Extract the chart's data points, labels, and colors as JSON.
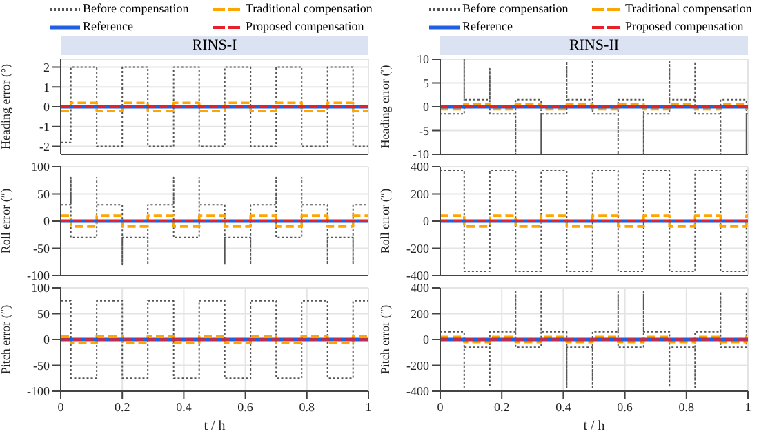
{
  "chart_data": [
    {
      "type": "line",
      "title": "RINS-I",
      "ylabel": "Heading error (°)",
      "xlim": [
        0,
        1
      ],
      "xticks": [
        0,
        0.2,
        0.4,
        0.6,
        0.8,
        1
      ],
      "ylim": [
        -2.4,
        2.4
      ],
      "yticks": [
        -2,
        -1,
        0,
        1,
        2
      ],
      "grid": true,
      "legend": "top",
      "marker": "none",
      "tick_labels": "y",
      "series": [
        {
          "name": "Before compensation",
          "color": "#555555",
          "line_style": "dotted",
          "x": [
            0,
            0.033,
            0.033,
            0.117,
            0.117,
            0.2,
            0.2,
            0.283,
            0.283,
            0.367,
            0.367,
            0.45,
            0.45,
            0.533,
            0.533,
            0.617,
            0.617,
            0.7,
            0.7,
            0.783,
            0.783,
            0.867,
            0.867,
            0.95,
            0.95,
            1
          ],
          "values": [
            -1.8,
            -1.8,
            2,
            2,
            -2,
            -2,
            2,
            2,
            -2,
            -2,
            2,
            2,
            -2,
            -2,
            2,
            2,
            -2,
            -2,
            2,
            2,
            -2,
            -2,
            2,
            2,
            -2,
            -2
          ]
        },
        {
          "name": "Traditional compensation",
          "color": "#ffa500",
          "line_style": "dashed",
          "x": [
            0,
            0.033,
            0.033,
            0.117,
            0.117,
            0.2,
            0.2,
            0.283,
            0.283,
            0.367,
            0.367,
            0.45,
            0.45,
            0.533,
            0.533,
            0.617,
            0.617,
            0.7,
            0.7,
            0.783,
            0.783,
            0.867,
            0.867,
            0.95,
            0.95,
            1
          ],
          "values": [
            -0.2,
            -0.2,
            0.2,
            0.2,
            -0.2,
            -0.2,
            0.2,
            0.2,
            -0.2,
            -0.2,
            0.2,
            0.2,
            -0.2,
            -0.2,
            0.2,
            0.2,
            -0.2,
            -0.2,
            0.2,
            0.2,
            -0.2,
            -0.2,
            0.2,
            0.2,
            -0.2,
            -0.2
          ]
        },
        {
          "name": "Reference",
          "color": "#1f5fe0",
          "line_style": "solid",
          "x": [
            0,
            1
          ],
          "values": [
            0,
            0
          ]
        },
        {
          "name": "Proposed compensation",
          "color": "#e8202a",
          "line_style": "dashed",
          "x": [
            0,
            1
          ],
          "values": [
            0,
            0
          ]
        }
      ]
    },
    {
      "type": "line",
      "title": "RINS-II",
      "ylabel": "Heading error (′)",
      "xlim": [
        0,
        1
      ],
      "xticks": [
        0,
        0.2,
        0.4,
        0.6,
        0.8,
        1
      ],
      "ylim": [
        -10,
        10
      ],
      "yticks": [
        -10,
        -5,
        0,
        5,
        10
      ],
      "grid": true,
      "legend": "top",
      "marker": "none",
      "tick_labels": "y",
      "series": [
        {
          "name": "Before compensation",
          "color": "#555555",
          "line_style": "dotted",
          "x": [
            0,
            0.078,
            0.078,
            0.078,
            0.161,
            0.161,
            0.161,
            0.245,
            0.245,
            0.245,
            0.328,
            0.328,
            0.328,
            0.411,
            0.411,
            0.411,
            0.495,
            0.495,
            0.495,
            0.578,
            0.578,
            0.578,
            0.661,
            0.661,
            0.661,
            0.745,
            0.745,
            0.745,
            0.828,
            0.828,
            0.828,
            0.911,
            0.911,
            0.911,
            0.995,
            0.995,
            0.995,
            1
          ],
          "values": [
            -1.5,
            -1.5,
            10,
            1.5,
            1.5,
            8,
            -1.5,
            -1.5,
            -10,
            1.5,
            1.5,
            -10,
            -1.5,
            -1.5,
            9.5,
            1.5,
            1.5,
            9.5,
            -1.5,
            -1.5,
            -10,
            1.5,
            1.5,
            -10,
            -1.5,
            -1.5,
            9.5,
            1.5,
            1.5,
            9.5,
            -1.5,
            -1.5,
            -10,
            1.5,
            1.5,
            -10,
            -1.5,
            -1.5
          ]
        },
        {
          "name": "Traditional compensation",
          "color": "#ffa500",
          "line_style": "dashed",
          "x": [
            0,
            0.078,
            0.078,
            0.161,
            0.161,
            0.245,
            0.245,
            0.328,
            0.328,
            0.411,
            0.411,
            0.495,
            0.495,
            0.578,
            0.578,
            0.661,
            0.661,
            0.745,
            0.745,
            0.828,
            0.828,
            0.911,
            0.911,
            0.995,
            0.995,
            1
          ],
          "values": [
            -0.5,
            -0.5,
            0.5,
            0.5,
            -0.5,
            -0.5,
            0.5,
            0.5,
            -0.5,
            -0.5,
            0.5,
            0.5,
            -0.5,
            -0.5,
            0.5,
            0.5,
            -0.5,
            -0.5,
            0.5,
            0.5,
            -0.5,
            -0.5,
            0.5,
            0.5,
            -0.5,
            -0.5
          ]
        },
        {
          "name": "Reference",
          "color": "#1f5fe0",
          "line_style": "solid",
          "x": [
            0,
            1
          ],
          "values": [
            0,
            0
          ]
        },
        {
          "name": "Proposed compensation",
          "color": "#e8202a",
          "line_style": "dashed",
          "x": [
            0,
            1
          ],
          "values": [
            0,
            0
          ]
        }
      ]
    },
    {
      "type": "line",
      "ylabel": "Roll error (″)",
      "xlim": [
        0,
        1
      ],
      "xticks": [
        0,
        0.2,
        0.4,
        0.6,
        0.8,
        1
      ],
      "ylim": [
        -100,
        100
      ],
      "yticks": [
        -100,
        -50,
        0,
        50,
        100
      ],
      "grid": true,
      "marker": "none",
      "tick_labels": "y",
      "series": [
        {
          "color": "#555555",
          "line_style": "dotted",
          "x": [
            0,
            0.033,
            0.033,
            0.033,
            0.117,
            0.117,
            0.117,
            0.2,
            0.2,
            0.2,
            0.283,
            0.283,
            0.283,
            0.367,
            0.367,
            0.367,
            0.45,
            0.45,
            0.45,
            0.533,
            0.533,
            0.533,
            0.617,
            0.617,
            0.617,
            0.7,
            0.7,
            0.7,
            0.783,
            0.783,
            0.783,
            0.867,
            0.867,
            0.867,
            0.95,
            0.95,
            0.95,
            1
          ],
          "values": [
            30,
            30,
            80,
            -30,
            -30,
            80,
            30,
            30,
            -80,
            -30,
            -30,
            -80,
            30,
            30,
            80,
            -30,
            -30,
            80,
            30,
            30,
            -80,
            -30,
            -30,
            -80,
            30,
            30,
            80,
            -30,
            -30,
            80,
            30,
            30,
            -80,
            -30,
            -30,
            -80,
            30,
            30
          ]
        },
        {
          "color": "#ffa500",
          "line_style": "dashed",
          "x": [
            0,
            0.033,
            0.033,
            0.117,
            0.117,
            0.2,
            0.2,
            0.283,
            0.283,
            0.367,
            0.367,
            0.45,
            0.45,
            0.533,
            0.533,
            0.617,
            0.617,
            0.7,
            0.7,
            0.783,
            0.783,
            0.867,
            0.867,
            0.95,
            0.95,
            1
          ],
          "values": [
            10,
            10,
            -10,
            -10,
            10,
            10,
            -10,
            -10,
            10,
            10,
            -10,
            -10,
            10,
            10,
            -10,
            -10,
            10,
            10,
            -10,
            -10,
            10,
            10,
            -10,
            -10,
            10,
            10
          ]
        },
        {
          "color": "#1f5fe0",
          "line_style": "solid",
          "x": [
            0,
            1
          ],
          "values": [
            0,
            0
          ]
        },
        {
          "color": "#e8202a",
          "line_style": "dashed",
          "x": [
            0,
            1
          ],
          "values": [
            0,
            0
          ]
        }
      ]
    },
    {
      "type": "line",
      "ylabel": "Roll error (″)",
      "xlim": [
        0,
        1
      ],
      "xticks": [
        0,
        0.2,
        0.4,
        0.6,
        0.8,
        1
      ],
      "ylim": [
        -400,
        400
      ],
      "yticks": [
        -400,
        -200,
        0,
        200,
        400
      ],
      "grid": true,
      "marker": "none",
      "tick_labels": "y",
      "series": [
        {
          "color": "#555555",
          "line_style": "dotted",
          "x": [
            0,
            0.078,
            0.078,
            0.161,
            0.161,
            0.245,
            0.245,
            0.328,
            0.328,
            0.411,
            0.411,
            0.495,
            0.495,
            0.578,
            0.578,
            0.661,
            0.661,
            0.745,
            0.745,
            0.828,
            0.828,
            0.911,
            0.911,
            0.995,
            0.995,
            1
          ],
          "values": [
            370,
            370,
            -370,
            -370,
            370,
            370,
            -370,
            -370,
            370,
            370,
            -370,
            -370,
            370,
            370,
            -370,
            -370,
            370,
            370,
            -370,
            -370,
            370,
            370,
            -370,
            -370,
            370,
            370
          ]
        },
        {
          "color": "#ffa500",
          "line_style": "dashed",
          "x": [
            0,
            0.078,
            0.078,
            0.161,
            0.161,
            0.245,
            0.245,
            0.328,
            0.328,
            0.411,
            0.411,
            0.495,
            0.495,
            0.578,
            0.578,
            0.661,
            0.661,
            0.745,
            0.745,
            0.828,
            0.828,
            0.911,
            0.911,
            0.995,
            0.995,
            1
          ],
          "values": [
            40,
            40,
            -40,
            -40,
            40,
            40,
            -40,
            -40,
            40,
            40,
            -40,
            -40,
            40,
            40,
            -40,
            -40,
            40,
            40,
            -40,
            -40,
            40,
            40,
            -40,
            -40,
            40,
            40
          ]
        },
        {
          "color": "#1f5fe0",
          "line_style": "solid",
          "x": [
            0,
            1
          ],
          "values": [
            0,
            0
          ]
        },
        {
          "color": "#e8202a",
          "line_style": "dashed",
          "x": [
            0,
            1
          ],
          "values": [
            0,
            0
          ]
        }
      ]
    },
    {
      "type": "line",
      "ylabel": "Pitch error (″)",
      "xlabel": "t / h",
      "xlim": [
        0,
        1
      ],
      "xticks": [
        0,
        0.2,
        0.4,
        0.6,
        0.8,
        1
      ],
      "ylim": [
        -100,
        100
      ],
      "yticks": [
        -100,
        -50,
        0,
        50,
        100
      ],
      "grid": true,
      "marker": "none",
      "series": [
        {
          "color": "#555555",
          "line_style": "dotted",
          "x": [
            0,
            0.033,
            0.033,
            0.117,
            0.117,
            0.2,
            0.2,
            0.283,
            0.283,
            0.367,
            0.367,
            0.45,
            0.45,
            0.533,
            0.533,
            0.617,
            0.617,
            0.7,
            0.7,
            0.783,
            0.783,
            0.867,
            0.867,
            0.95,
            0.95,
            1
          ],
          "values": [
            75,
            75,
            -75,
            -75,
            75,
            75,
            -75,
            -75,
            75,
            75,
            -75,
            -75,
            75,
            75,
            -75,
            -75,
            75,
            75,
            -75,
            -75,
            75,
            75,
            -75,
            -75,
            75,
            75
          ]
        },
        {
          "color": "#ffa500",
          "line_style": "dashed",
          "x": [
            0,
            0.033,
            0.033,
            0.117,
            0.117,
            0.2,
            0.2,
            0.283,
            0.283,
            0.367,
            0.367,
            0.45,
            0.45,
            0.533,
            0.533,
            0.617,
            0.617,
            0.7,
            0.7,
            0.783,
            0.783,
            0.867,
            0.867,
            0.95,
            0.95,
            1
          ],
          "values": [
            7,
            7,
            -7,
            -7,
            7,
            7,
            -7,
            -7,
            7,
            7,
            -7,
            -7,
            7,
            7,
            -7,
            -7,
            7,
            7,
            -7,
            -7,
            7,
            7,
            -7,
            -7,
            7,
            7
          ]
        },
        {
          "color": "#1f5fe0",
          "line_style": "solid",
          "x": [
            0,
            1
          ],
          "values": [
            0,
            0
          ]
        },
        {
          "color": "#e8202a",
          "line_style": "dashed",
          "x": [
            0,
            1
          ],
          "values": [
            0,
            0
          ]
        }
      ]
    },
    {
      "type": "line",
      "ylabel": "Pitch error (″)",
      "xlabel": "t / h",
      "xlim": [
        0,
        1
      ],
      "xticks": [
        0,
        0.2,
        0.4,
        0.6,
        0.8,
        1
      ],
      "ylim": [
        -400,
        400
      ],
      "yticks": [
        -400,
        -200,
        0,
        200,
        400
      ],
      "grid": true,
      "marker": "none",
      "series": [
        {
          "color": "#555555",
          "line_style": "dotted",
          "x": [
            0,
            0.078,
            0.078,
            0.078,
            0.161,
            0.161,
            0.161,
            0.245,
            0.245,
            0.245,
            0.328,
            0.328,
            0.328,
            0.411,
            0.411,
            0.411,
            0.495,
            0.495,
            0.495,
            0.578,
            0.578,
            0.578,
            0.661,
            0.661,
            0.661,
            0.745,
            0.745,
            0.745,
            0.828,
            0.828,
            0.828,
            0.911,
            0.911,
            0.911,
            0.995,
            0.995,
            0.995,
            1
          ],
          "values": [
            60,
            60,
            -370,
            -60,
            -60,
            -370,
            60,
            60,
            370,
            -60,
            -60,
            370,
            60,
            60,
            -370,
            -60,
            -60,
            -370,
            60,
            60,
            370,
            -60,
            -60,
            370,
            60,
            60,
            -370,
            -60,
            -60,
            -370,
            60,
            60,
            370,
            -60,
            -60,
            370,
            60,
            60
          ]
        },
        {
          "color": "#ffa500",
          "line_style": "dashed",
          "x": [
            0,
            0.078,
            0.078,
            0.161,
            0.161,
            0.245,
            0.245,
            0.328,
            0.328,
            0.411,
            0.411,
            0.495,
            0.495,
            0.578,
            0.578,
            0.661,
            0.661,
            0.745,
            0.745,
            0.828,
            0.828,
            0.911,
            0.911,
            0.995,
            0.995,
            1
          ],
          "values": [
            20,
            20,
            -20,
            -20,
            20,
            20,
            -20,
            -20,
            20,
            20,
            -20,
            -20,
            20,
            20,
            -20,
            -20,
            20,
            20,
            -20,
            -20,
            20,
            20,
            -20,
            -20,
            20,
            20
          ]
        },
        {
          "color": "#1f5fe0",
          "line_style": "solid",
          "x": [
            0,
            1
          ],
          "values": [
            0,
            0
          ]
        },
        {
          "color": "#e8202a",
          "line_style": "dashed",
          "x": [
            0,
            1
          ],
          "values": [
            0,
            0
          ]
        }
      ]
    }
  ]
}
